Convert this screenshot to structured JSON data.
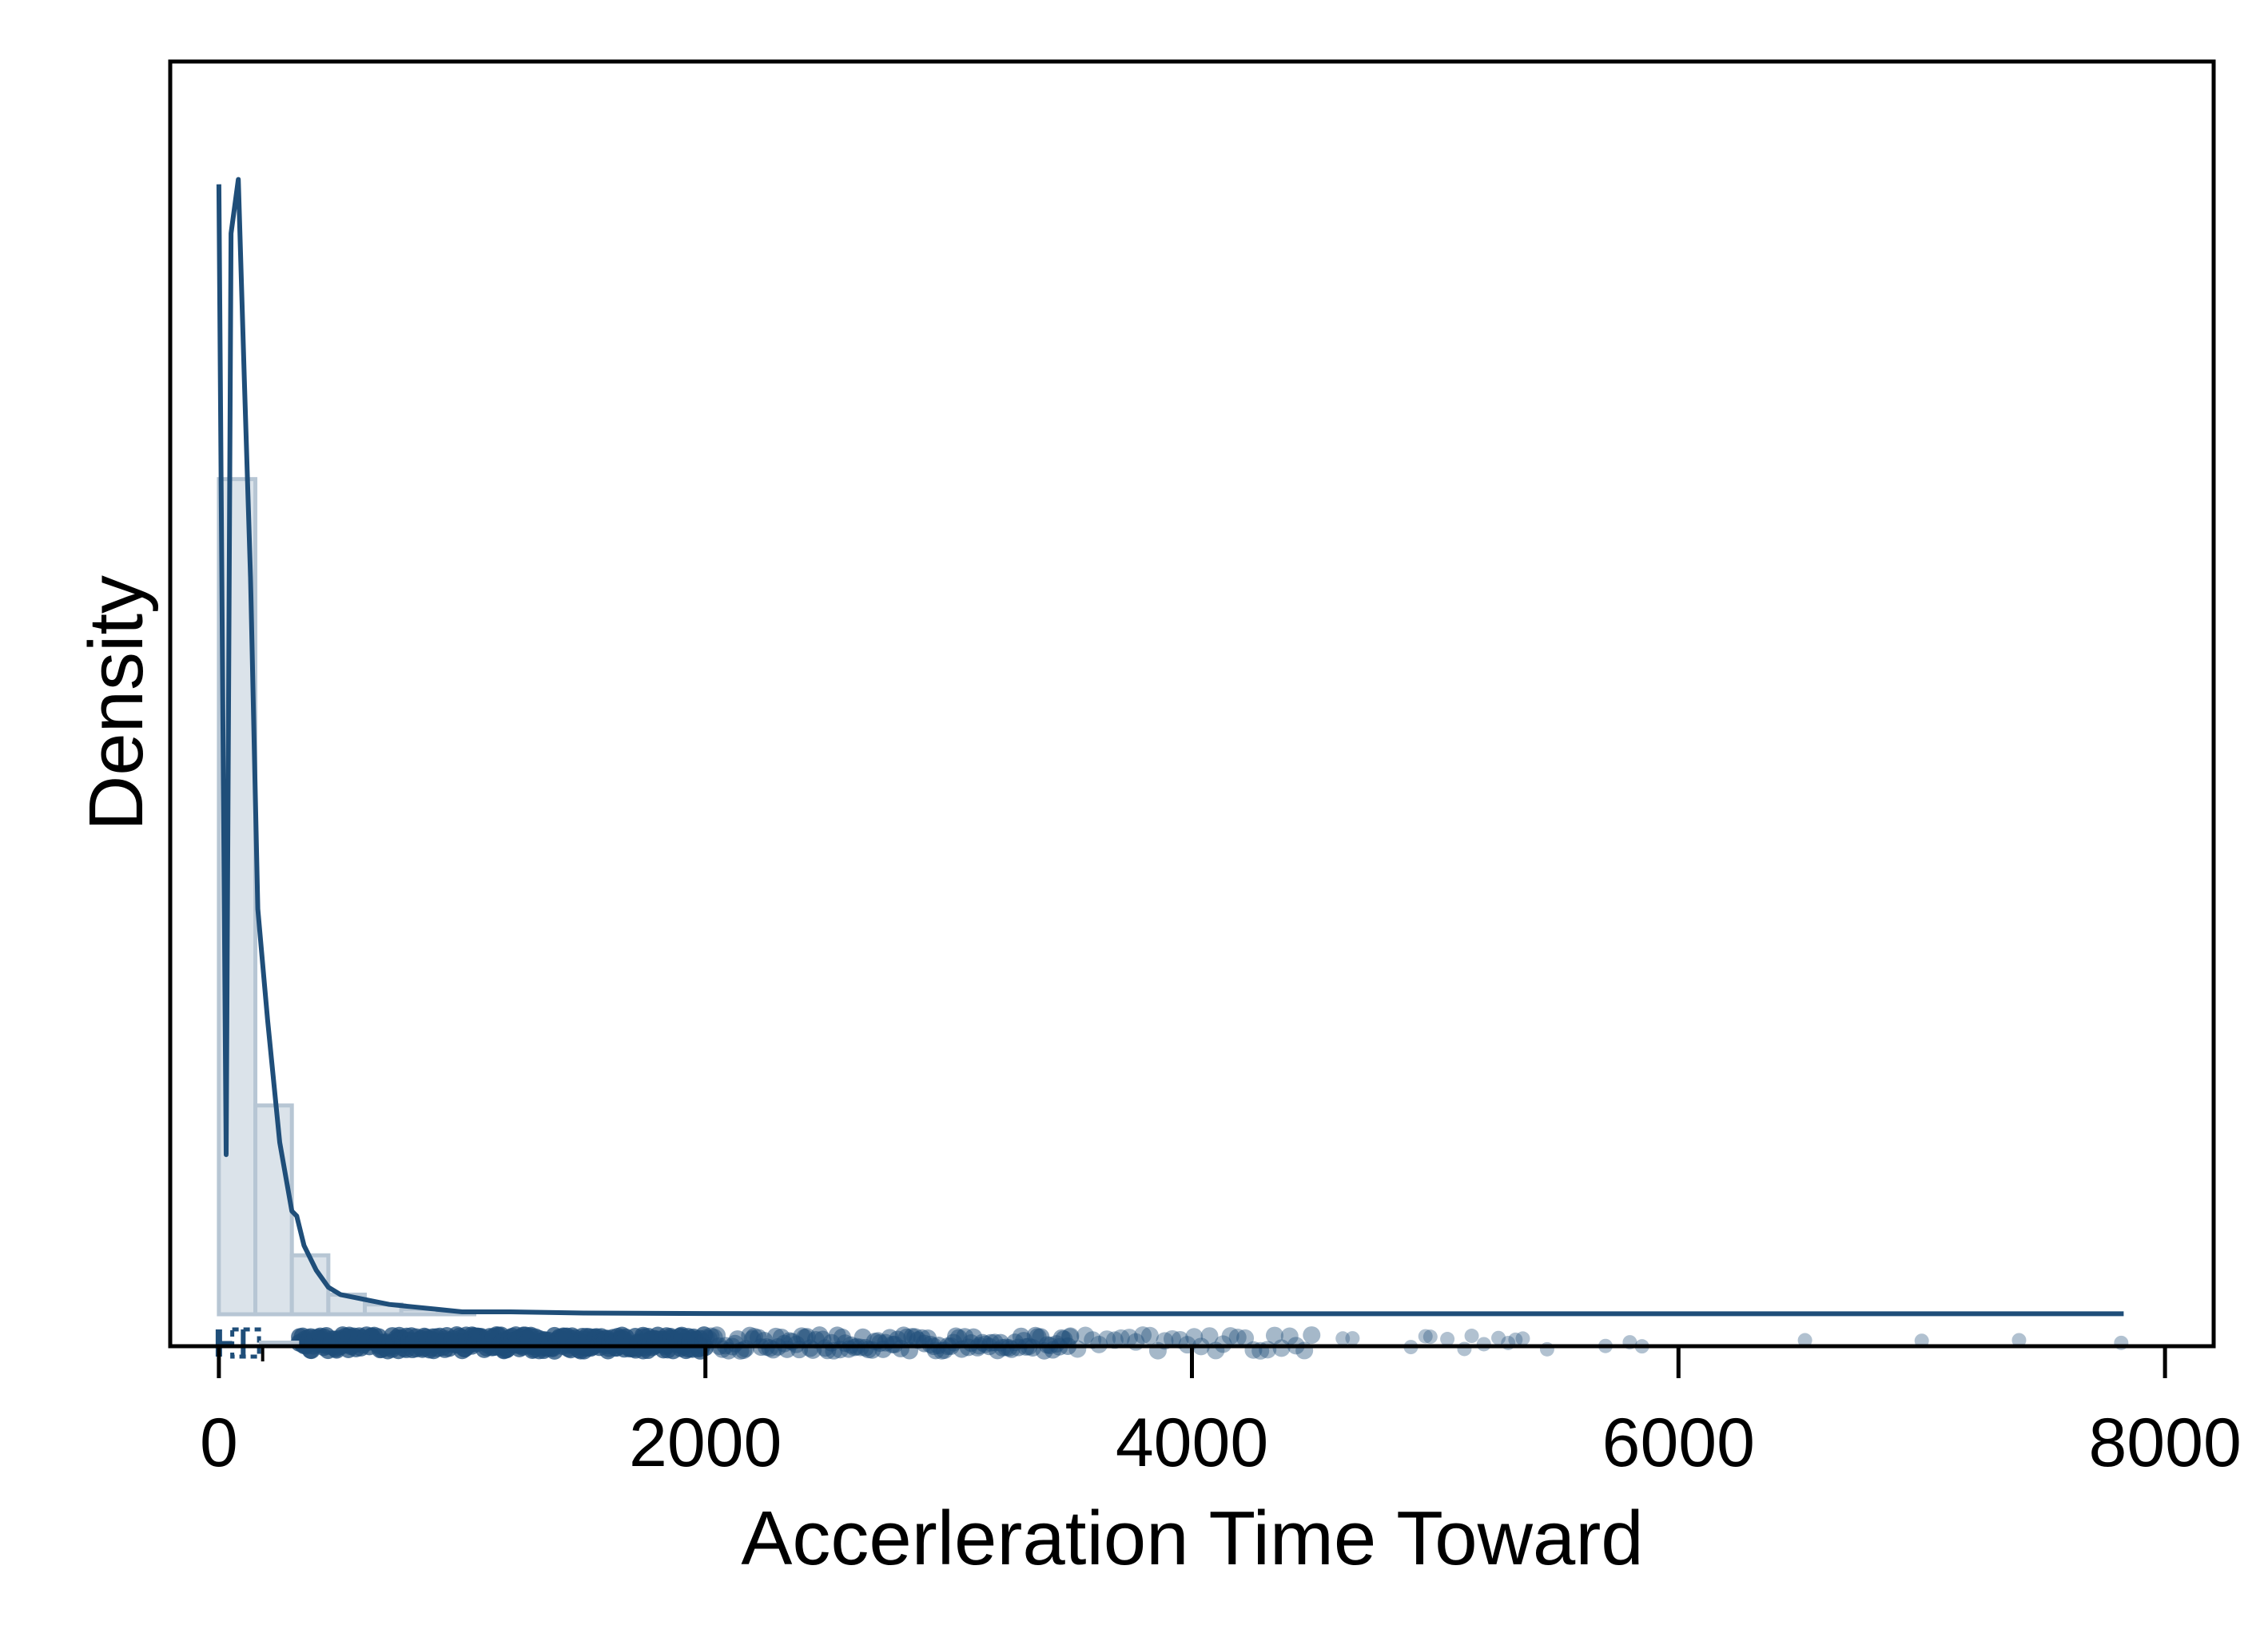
{
  "chart_data": {
    "type": "histogram-density",
    "title": "",
    "xlabel": "Accerleration Time Toward",
    "ylabel": "Density",
    "xlim": [
      -200,
      8200
    ],
    "ylim": [
      -0.00013,
      0.0051
    ],
    "x_ticks": [
      0,
      2000,
      4000,
      6000,
      8000
    ],
    "x_tick_labels": [
      "0",
      "2000",
      "4000",
      "6000",
      "8000"
    ],
    "y_ticks_shown": false,
    "grid": false,
    "legend": "none",
    "histogram": {
      "bin_width": 150,
      "bins": [
        {
          "start": 0,
          "density": 0.0034
        },
        {
          "start": 150,
          "density": 0.00085
        },
        {
          "start": 300,
          "density": 0.00024
        },
        {
          "start": 450,
          "density": 8e-05
        },
        {
          "start": 600,
          "density": 4e-05
        },
        {
          "start": 750,
          "density": 2e-05
        },
        {
          "start": 900,
          "density": 1e-05
        }
      ]
    },
    "density_curve": {
      "x": [
        0,
        30,
        50,
        80,
        105,
        130,
        160,
        200,
        250,
        300,
        320,
        350,
        400,
        450,
        500,
        600,
        700,
        800,
        900,
        1000,
        1200,
        1500,
        2000,
        2500,
        3000,
        4000,
        5000,
        6000,
        7000,
        7830
      ],
      "y": [
        0.0046,
        0.00065,
        0.0044,
        0.00462,
        0.0038,
        0.003,
        0.00165,
        0.0012,
        0.0007,
        0.00042,
        0.0004,
        0.00028,
        0.00018,
        0.00011,
        8e-05,
        6e-05,
        4e-05,
        3e-05,
        2e-05,
        1e-05,
        1e-05,
        5e-06,
        3e-06,
        2e-06,
        2e-06,
        2e-06,
        2e-06,
        2e-06,
        2e-06,
        2e-06
      ]
    },
    "boxplot": {
      "whisker_low": 0,
      "q1": 55,
      "median": 100,
      "q3": 165,
      "whisker_high": 330,
      "mean": 180
    },
    "outliers": [
      4620,
      4660,
      4900,
      4980,
      4960,
      5050,
      5120,
      5150,
      5200,
      5260,
      5300,
      5330,
      5360,
      5460,
      5700,
      5800,
      5850,
      6520,
      7000,
      7400,
      7820
    ],
    "colors": {
      "line": "#1f4e79",
      "bar_fill": "#dbe3ea",
      "bar_edge": "#b7c6d4",
      "points": "#1f4e79"
    }
  }
}
